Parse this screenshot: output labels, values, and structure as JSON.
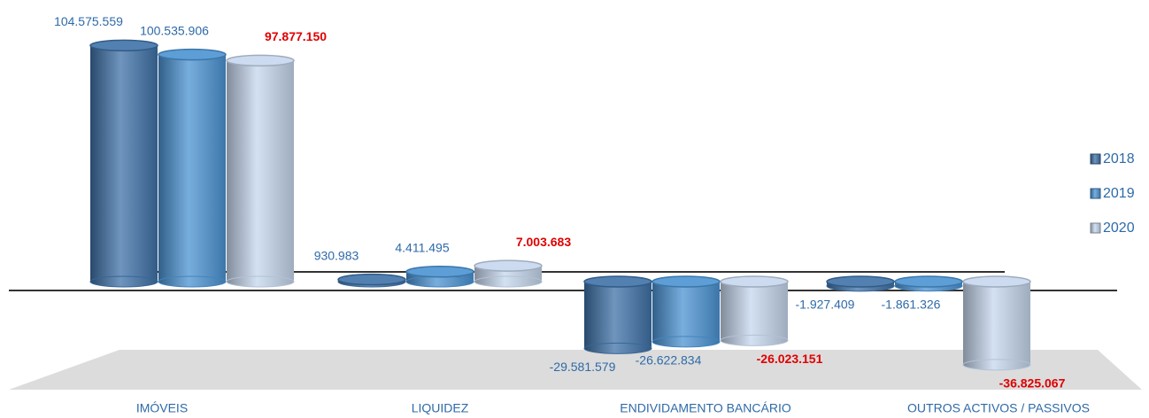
{
  "chart_data": {
    "type": "bar3d",
    "categories": [
      "IMÓVEIS",
      "LIQUIDEZ",
      "ENDIVIDAMENTO BANCÁRIO",
      "OUTROS ACTIVOS / PASSIVOS"
    ],
    "series": [
      {
        "name": "2018",
        "color": "#3f72a8",
        "label_color": "#2e6aa8",
        "values": [
          104575559,
          930983,
          -29581579,
          -1927409
        ],
        "value_labels": [
          "104.575.559",
          "930.983",
          "-29.581.579",
          "-1.927.409"
        ]
      },
      {
        "name": "2019",
        "color": "#4b93d3",
        "label_color": "#2e6aa8",
        "values": [
          100535906,
          4411495,
          -26622834,
          -1861326
        ],
        "value_labels": [
          "100.535.906",
          "4.411.495",
          "-26.622.834",
          "-1.861.326"
        ]
      },
      {
        "name": "2020",
        "color": "#c6d7ee",
        "label_color": "#e00000",
        "values": [
          97877150,
          7003683,
          -26023151,
          -36825067
        ],
        "value_labels": [
          "97.877.150",
          "7.003.683",
          "-26.023.151",
          "-36.825.067"
        ]
      }
    ],
    "legend": "right"
  }
}
